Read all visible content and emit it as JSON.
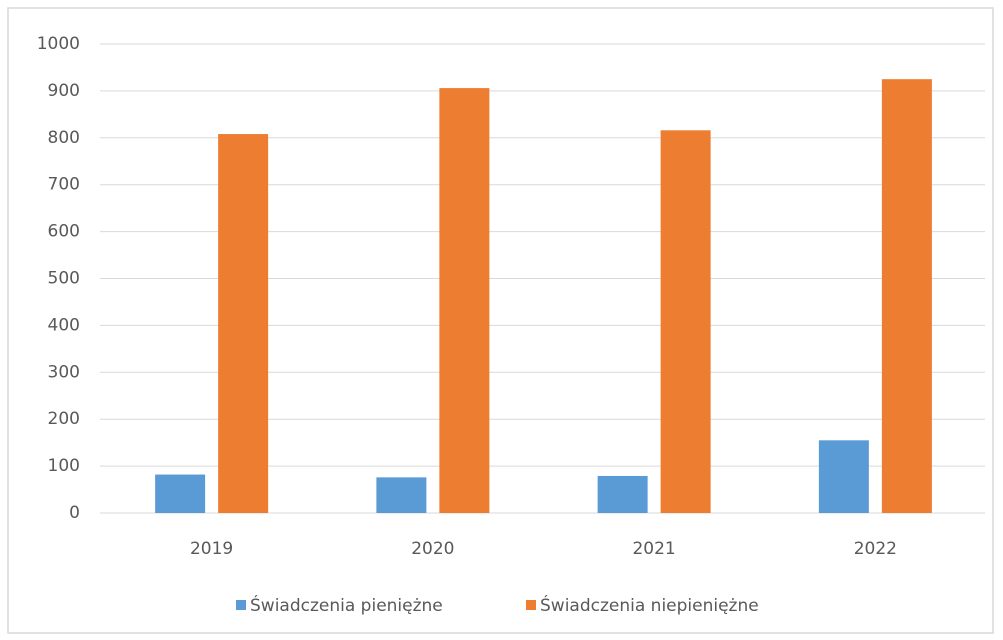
{
  "chart_data": {
    "type": "bar",
    "categories": [
      "2019",
      "2020",
      "2021",
      "2022"
    ],
    "series": [
      {
        "name": "Świadczenia pieniężne",
        "color": "#5b9bd5",
        "values": [
          82,
          76,
          79,
          155
        ]
      },
      {
        "name": "Świadczenia niepieniężne",
        "color": "#ed7d31",
        "values": [
          808,
          906,
          816,
          925
        ]
      }
    ],
    "ylim": [
      0,
      1000
    ],
    "yticks": [
      0,
      100,
      200,
      300,
      400,
      500,
      600,
      700,
      800,
      900,
      1000
    ],
    "grid": true,
    "legend": "bottom"
  }
}
